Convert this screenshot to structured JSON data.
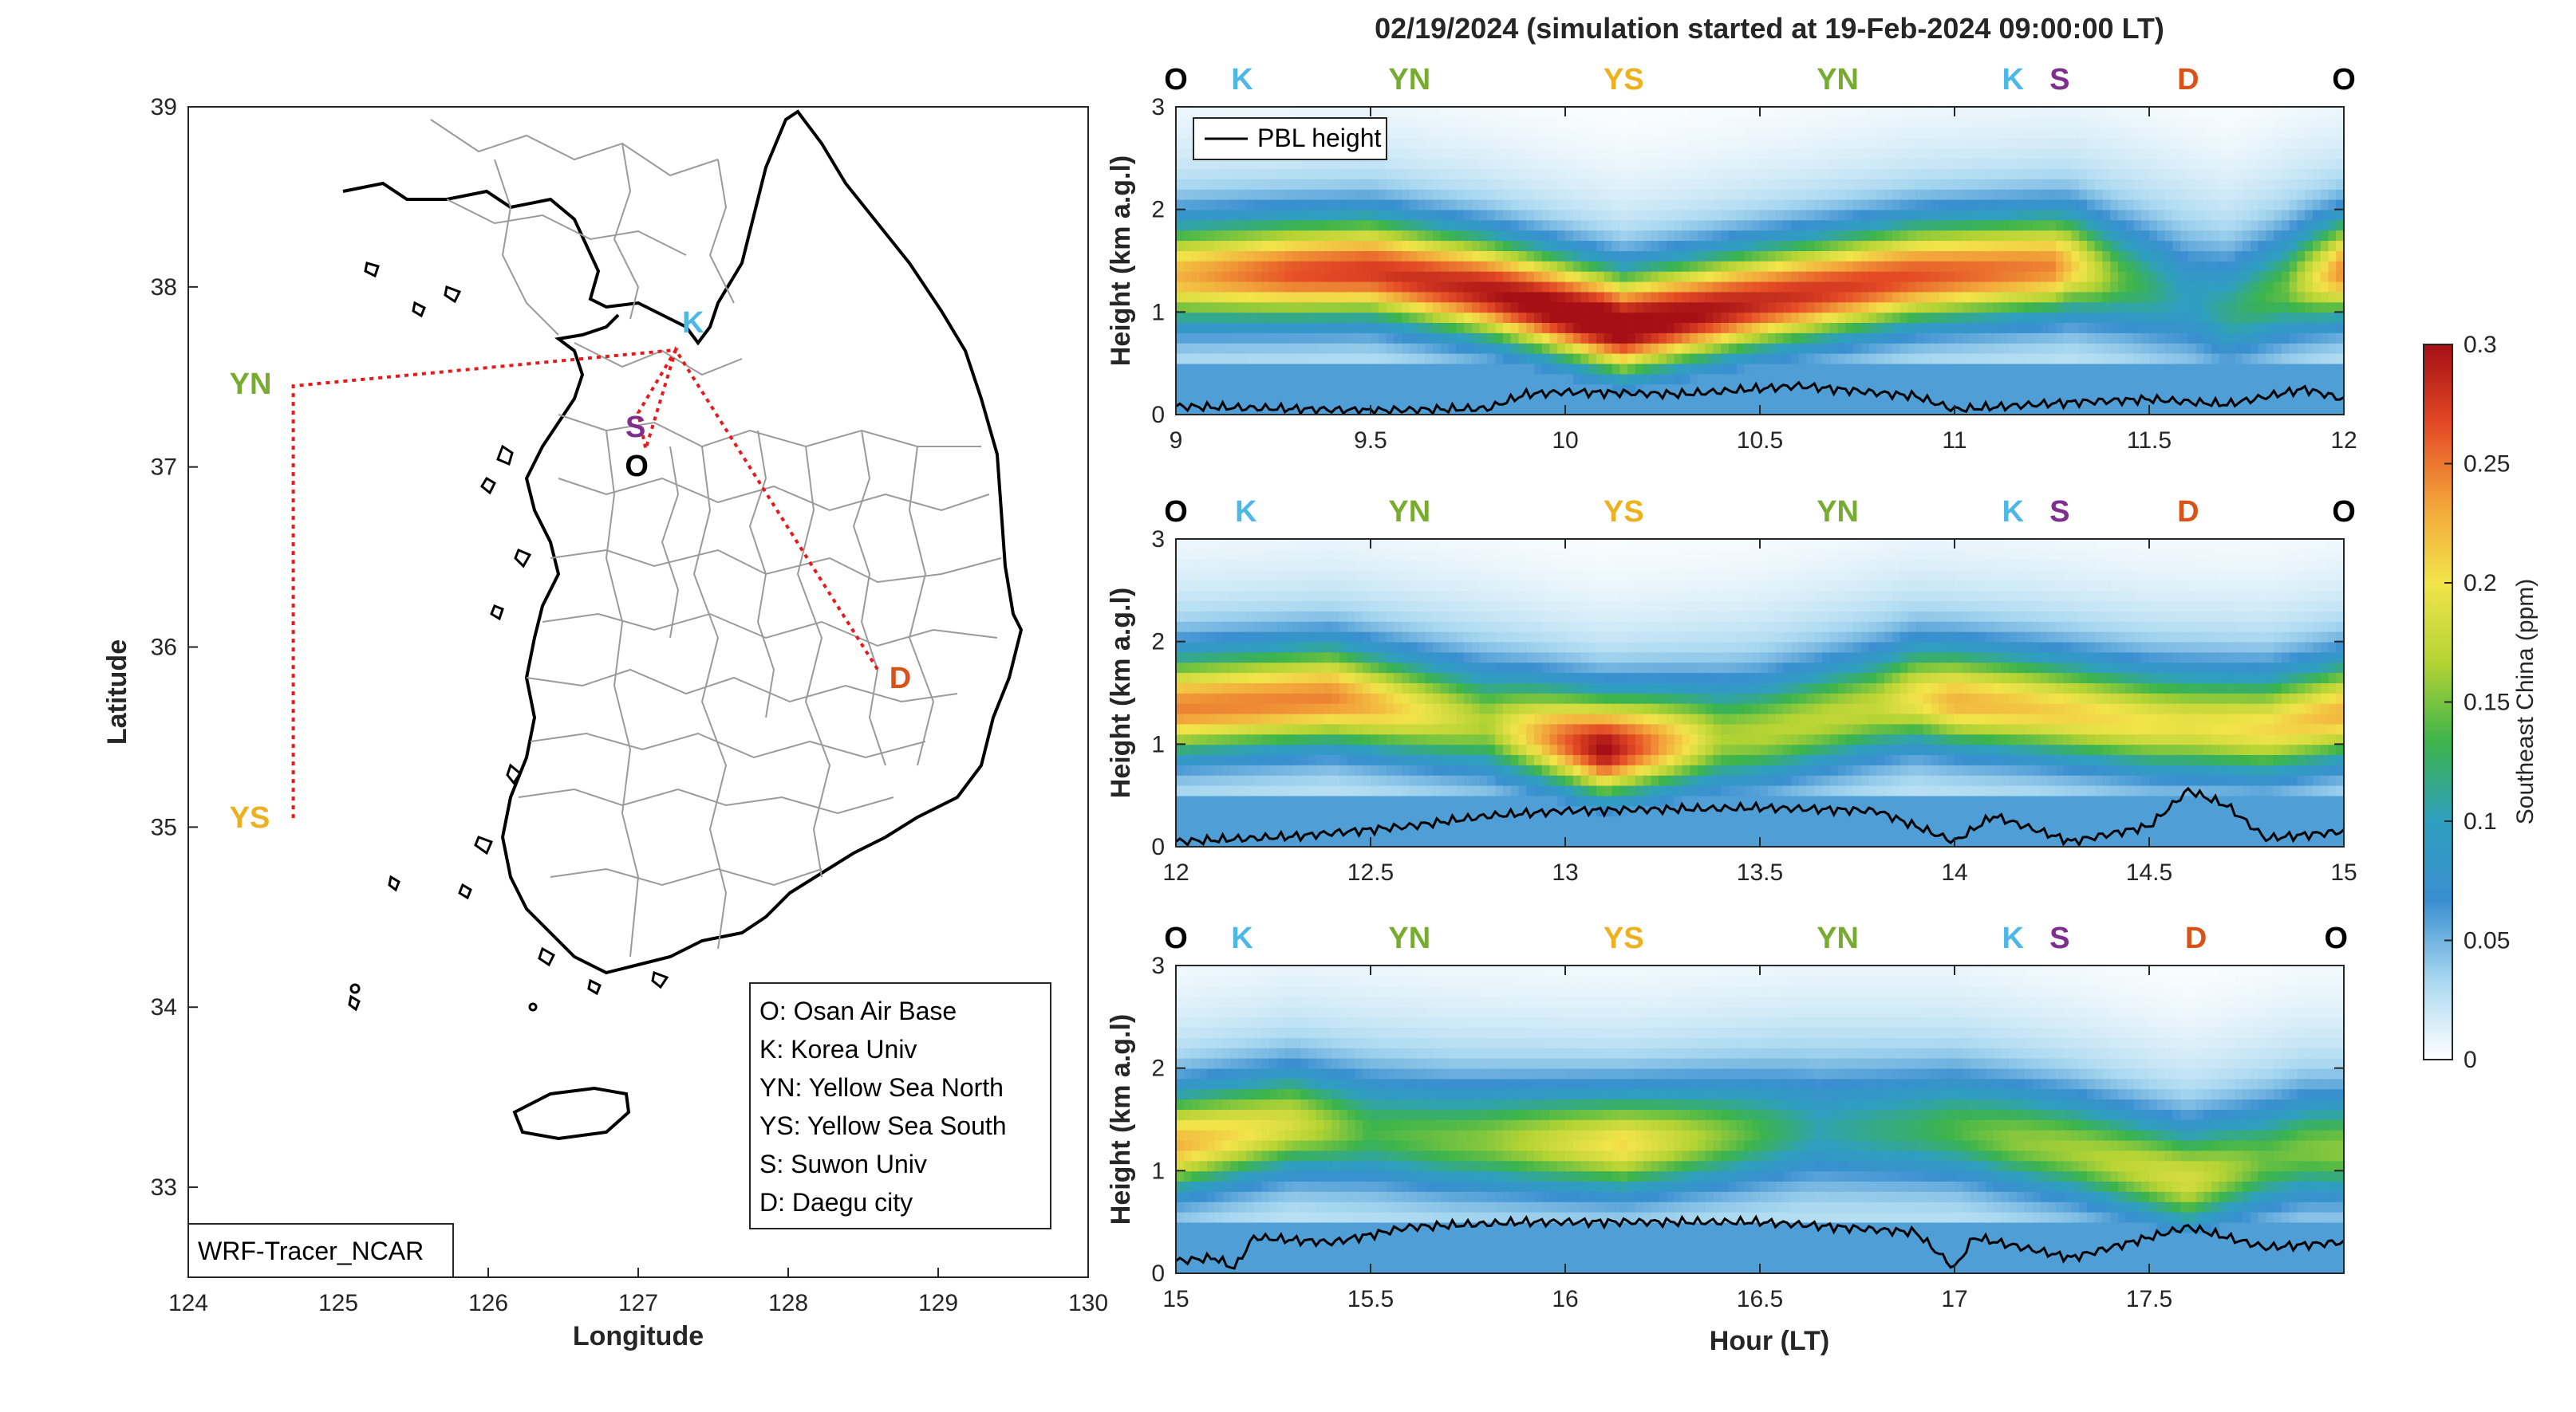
{
  "title": "02/19/2024 (simulation started at 19-Feb-2024 09:00:00 LT)",
  "colors": {
    "O": "#000000",
    "K": "#4db8e8",
    "YN": "#77ac30",
    "YS": "#edb120",
    "S": "#7e2f8e",
    "D": "#d95319",
    "route": "#e41a1c",
    "colormap": [
      "#ffffff",
      "#a9d8f0",
      "#3a8fd0",
      "#2e9fbf",
      "#3cb44b",
      "#b5d334",
      "#f2e44a",
      "#f2a33a",
      "#e44a25",
      "#a50f15"
    ]
  },
  "map": {
    "xlabel": "Longitude",
    "ylabel": "Latitude",
    "xlim": [
      124,
      130
    ],
    "ylim": [
      32.5,
      39
    ],
    "xticks": [
      "124",
      "125",
      "126",
      "127",
      "128",
      "129",
      "130"
    ],
    "yticks": [
      "33",
      "34",
      "35",
      "36",
      "37",
      "38",
      "39"
    ],
    "sites": [
      {
        "id": "YN",
        "label": "YN",
        "lon": 124.7,
        "lat": 37.45
      },
      {
        "id": "YS",
        "label": "YS",
        "lon": 124.7,
        "lat": 35.05
      },
      {
        "id": "K",
        "label": "K",
        "lon": 127.25,
        "lat": 37.65
      },
      {
        "id": "S",
        "label": "S",
        "lon": 127.0,
        "lat": 37.3
      },
      {
        "id": "O",
        "label": "O",
        "lon": 127.05,
        "lat": 37.1
      },
      {
        "id": "D",
        "label": "D",
        "lon": 128.6,
        "lat": 35.87
      }
    ],
    "legend": [
      "O: Osan Air Base",
      "K: Korea Univ",
      "YN: Yellow Sea North",
      "YS: Yellow Sea South",
      "S: Suwon Univ",
      "D: Daegu city"
    ],
    "model_label": "WRF-Tracer_NCAR"
  },
  "chart_data": [
    {
      "type": "heatmap",
      "panel": "top",
      "xlim": [
        9,
        12
      ],
      "ylim": [
        0,
        3
      ],
      "xticks": [
        "9",
        "9.5",
        "10",
        "10.5",
        "11",
        "11.5",
        "12"
      ],
      "yticks": [
        "0",
        "1",
        "2",
        "3"
      ],
      "ylabel": "Height (km a.g.l)",
      "legend": "PBL height",
      "site_labels": [
        {
          "label": "O",
          "hour": 9.0
        },
        {
          "label": "K",
          "hour": 9.17
        },
        {
          "label": "YN",
          "hour": 9.6
        },
        {
          "label": "YS",
          "hour": 10.15
        },
        {
          "label": "YN",
          "hour": 10.7
        },
        {
          "label": "K",
          "hour": 11.15
        },
        {
          "label": "S",
          "hour": 11.27
        },
        {
          "label": "D",
          "hour": 11.6
        },
        {
          "label": "O",
          "hour": 12.0
        }
      ],
      "layer_center_km": [
        [
          9.0,
          1.35
        ],
        [
          9.5,
          1.4
        ],
        [
          9.8,
          1.2
        ],
        [
          10.15,
          0.85
        ],
        [
          10.5,
          1.1
        ],
        [
          10.9,
          1.35
        ],
        [
          11.3,
          1.45
        ],
        [
          11.45,
          1.3
        ],
        [
          11.7,
          1.0
        ],
        [
          11.9,
          1.3
        ],
        [
          12.0,
          1.4
        ]
      ],
      "peak_ppm": [
        [
          9.0,
          0.18
        ],
        [
          9.3,
          0.22
        ],
        [
          9.7,
          0.24
        ],
        [
          10.1,
          0.28
        ],
        [
          10.5,
          0.24
        ],
        [
          10.9,
          0.22
        ],
        [
          11.25,
          0.2
        ],
        [
          11.42,
          0.1
        ],
        [
          11.6,
          0.05
        ],
        [
          11.85,
          0.1
        ],
        [
          12.0,
          0.2
        ]
      ],
      "pbl_height_km": [
        [
          9.0,
          0.08
        ],
        [
          9.5,
          0.04
        ],
        [
          9.8,
          0.06
        ],
        [
          9.9,
          0.2
        ],
        [
          10.0,
          0.22
        ],
        [
          10.3,
          0.2
        ],
        [
          10.6,
          0.28
        ],
        [
          10.9,
          0.18
        ],
        [
          11.0,
          0.05
        ],
        [
          11.3,
          0.12
        ],
        [
          11.5,
          0.15
        ],
        [
          11.7,
          0.1
        ],
        [
          11.9,
          0.25
        ],
        [
          12.0,
          0.15
        ]
      ]
    },
    {
      "type": "heatmap",
      "panel": "middle",
      "xlim": [
        12,
        15
      ],
      "ylim": [
        0,
        3
      ],
      "xticks": [
        "12",
        "12.5",
        "13",
        "13.5",
        "14",
        "14.5",
        "15"
      ],
      "yticks": [
        "0",
        "1",
        "2",
        "3"
      ],
      "ylabel": "Height (km a.g.l)",
      "site_labels": [
        {
          "label": "O",
          "hour": 12.0
        },
        {
          "label": "K",
          "hour": 12.18
        },
        {
          "label": "YN",
          "hour": 12.6
        },
        {
          "label": "YS",
          "hour": 13.15
        },
        {
          "label": "YN",
          "hour": 13.7
        },
        {
          "label": "K",
          "hour": 14.15
        },
        {
          "label": "S",
          "hour": 14.27
        },
        {
          "label": "D",
          "hour": 14.6
        },
        {
          "label": "O",
          "hour": 15.0
        }
      ],
      "layer_center_km": [
        [
          12.0,
          1.35
        ],
        [
          12.4,
          1.45
        ],
        [
          12.8,
          1.2
        ],
        [
          13.1,
          0.95
        ],
        [
          13.5,
          1.1
        ],
        [
          13.9,
          1.45
        ],
        [
          14.2,
          1.35
        ],
        [
          14.5,
          1.2
        ],
        [
          14.8,
          1.15
        ],
        [
          15.0,
          1.3
        ]
      ],
      "peak_ppm": [
        [
          12.0,
          0.2
        ],
        [
          12.4,
          0.2
        ],
        [
          12.8,
          0.12
        ],
        [
          13.1,
          0.26
        ],
        [
          13.4,
          0.12
        ],
        [
          13.8,
          0.13
        ],
        [
          14.0,
          0.18
        ],
        [
          14.4,
          0.16
        ],
        [
          14.6,
          0.15
        ],
        [
          14.8,
          0.16
        ],
        [
          15.0,
          0.18
        ]
      ],
      "pbl_height_km": [
        [
          12.0,
          0.05
        ],
        [
          12.3,
          0.1
        ],
        [
          12.6,
          0.2
        ],
        [
          12.8,
          0.3
        ],
        [
          13.0,
          0.35
        ],
        [
          13.5,
          0.38
        ],
        [
          13.8,
          0.35
        ],
        [
          14.0,
          0.05
        ],
        [
          14.1,
          0.3
        ],
        [
          14.3,
          0.05
        ],
        [
          14.5,
          0.2
        ],
        [
          14.6,
          0.55
        ],
        [
          14.7,
          0.4
        ],
        [
          14.8,
          0.08
        ],
        [
          15.0,
          0.15
        ]
      ]
    },
    {
      "type": "heatmap",
      "panel": "bottom",
      "xlim": [
        15,
        18
      ],
      "ylim": [
        0,
        3
      ],
      "xticks": [
        "15",
        "15.5",
        "16",
        "16.5",
        "17",
        "17.5"
      ],
      "yticks": [
        "0",
        "1",
        "2",
        "3"
      ],
      "ylabel": "Height (km a.g.l)",
      "xlabel": "Hour (LT)",
      "site_labels": [
        {
          "label": "O",
          "hour": 15.0
        },
        {
          "label": "K",
          "hour": 15.17
        },
        {
          "label": "YN",
          "hour": 15.6
        },
        {
          "label": "YS",
          "hour": 16.15
        },
        {
          "label": "YN",
          "hour": 16.7
        },
        {
          "label": "K",
          "hour": 17.15
        },
        {
          "label": "S",
          "hour": 17.27
        },
        {
          "label": "D",
          "hour": 17.62
        },
        {
          "label": "O",
          "hour": 17.98
        }
      ],
      "layer_center_km": [
        [
          15.0,
          1.25
        ],
        [
          15.3,
          1.45
        ],
        [
          15.7,
          1.3
        ],
        [
          16.15,
          1.25
        ],
        [
          16.6,
          1.4
        ],
        [
          17.0,
          1.4
        ],
        [
          17.3,
          1.2
        ],
        [
          17.6,
          0.9
        ],
        [
          17.9,
          1.2
        ]
      ],
      "peak_ppm": [
        [
          15.0,
          0.18
        ],
        [
          15.3,
          0.14
        ],
        [
          15.5,
          0.09
        ],
        [
          15.8,
          0.11
        ],
        [
          16.15,
          0.16
        ],
        [
          16.4,
          0.11
        ],
        [
          16.65,
          0.06
        ],
        [
          16.9,
          0.08
        ],
        [
          17.15,
          0.11
        ],
        [
          17.35,
          0.12
        ],
        [
          17.6,
          0.14
        ],
        [
          17.8,
          0.1
        ],
        [
          17.98,
          0.11
        ]
      ],
      "pbl_height_km": [
        [
          15.0,
          0.12
        ],
        [
          15.1,
          0.15
        ],
        [
          15.15,
          0.05
        ],
        [
          15.2,
          0.35
        ],
        [
          15.4,
          0.3
        ],
        [
          15.6,
          0.45
        ],
        [
          15.9,
          0.5
        ],
        [
          16.5,
          0.5
        ],
        [
          16.9,
          0.4
        ],
        [
          17.0,
          0.05
        ],
        [
          17.05,
          0.35
        ],
        [
          17.3,
          0.15
        ],
        [
          17.6,
          0.45
        ],
        [
          17.8,
          0.25
        ],
        [
          17.98,
          0.3
        ]
      ]
    }
  ],
  "colorbar": {
    "label": "Southeast China (ppm)",
    "lim": [
      0,
      0.3
    ],
    "ticks": [
      "0",
      "0.05",
      "0.1",
      "0.15",
      "0.2",
      "0.25",
      "0.3"
    ]
  }
}
